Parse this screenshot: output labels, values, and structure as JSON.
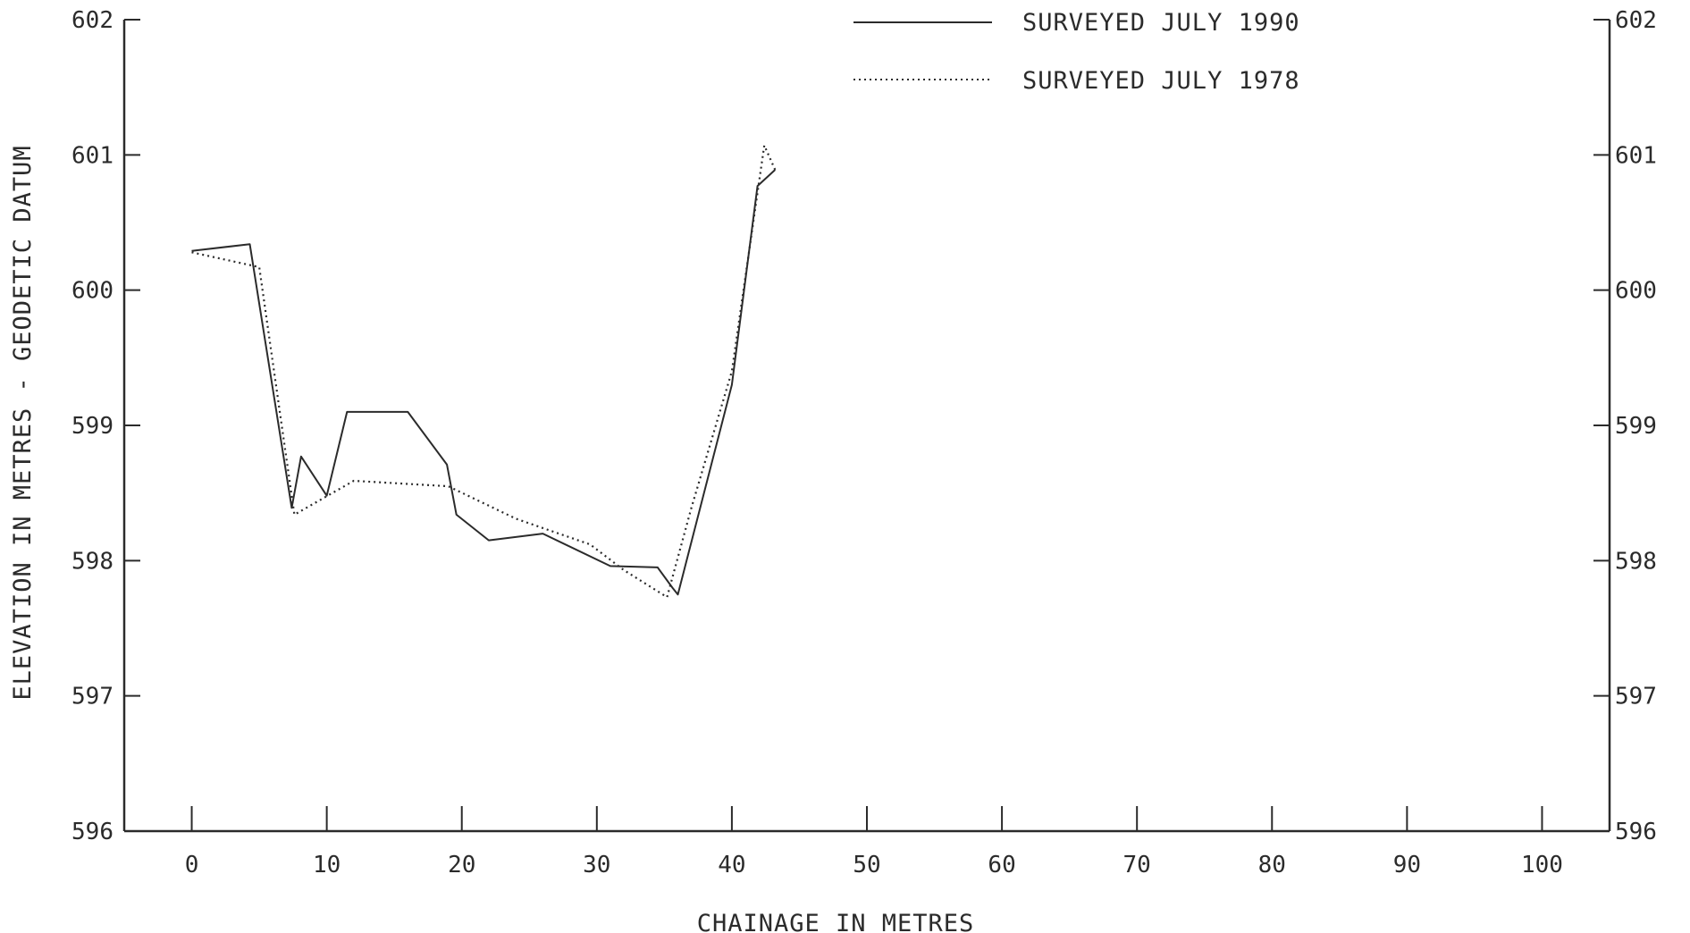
{
  "chart_data": {
    "type": "line",
    "title": "",
    "xlabel": "CHAINAGE IN METRES",
    "ylabel": "ELEVATION IN METRES - GEODETIC DATUM",
    "xlim": [
      -5,
      105
    ],
    "ylim": [
      596,
      602
    ],
    "x_ticks": [
      0,
      10,
      20,
      30,
      40,
      50,
      60,
      70,
      80,
      90,
      100
    ],
    "y_ticks": [
      596,
      597,
      598,
      599,
      600,
      601,
      602
    ],
    "y_ticks_right": [
      596,
      597,
      598,
      599,
      600,
      601,
      602
    ],
    "grid": false,
    "legend_position": "top-right",
    "series": [
      {
        "name": "SURVEYED JULY 1990",
        "style": "solid",
        "color": "#2b2b2b",
        "x": [
          0,
          4.3,
          7.4,
          8.1,
          10,
          11.5,
          16,
          18.9,
          19.6,
          22,
          26,
          31,
          34.5,
          35.6,
          36,
          40,
          41.9,
          43.2
        ],
        "y": [
          600.29,
          600.34,
          598.39,
          598.77,
          598.48,
          599.1,
          599.1,
          598.71,
          598.34,
          598.15,
          598.2,
          597.96,
          597.95,
          597.8,
          597.75,
          599.3,
          600.77,
          600.89
        ]
      },
      {
        "name": "SURVEYED JULY 1978",
        "style": "dotted",
        "color": "#2b2b2b",
        "x": [
          0,
          5,
          7.6,
          12,
          19,
          24,
          29.5,
          32,
          35.2,
          37,
          40,
          42.4,
          43.2
        ],
        "y": [
          600.28,
          600.17,
          598.34,
          598.59,
          598.55,
          598.31,
          598.12,
          597.93,
          597.73,
          598.39,
          599.4,
          601.07,
          600.89
        ]
      }
    ]
  }
}
